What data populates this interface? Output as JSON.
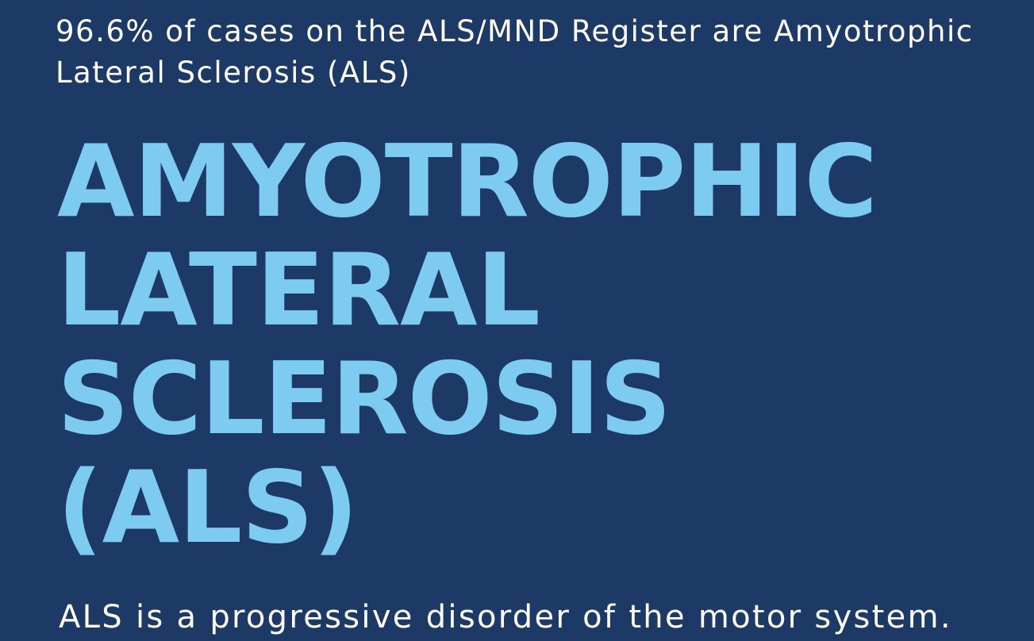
{
  "intro_text": "96.6% of cases on the ALS/MND Register are Amyotrophic Lateral Sclerosis (ALS)",
  "heading_lines": [
    "AMYOTROPHIC",
    "LATERAL",
    "SCLEROSIS",
    "(ALS)"
  ],
  "summary_text": "ALS is a progressive disorder of the motor system.",
  "colors": {
    "background": "#1c3a65",
    "heading": "#7dcbf0",
    "body_text": "#ffffff"
  }
}
